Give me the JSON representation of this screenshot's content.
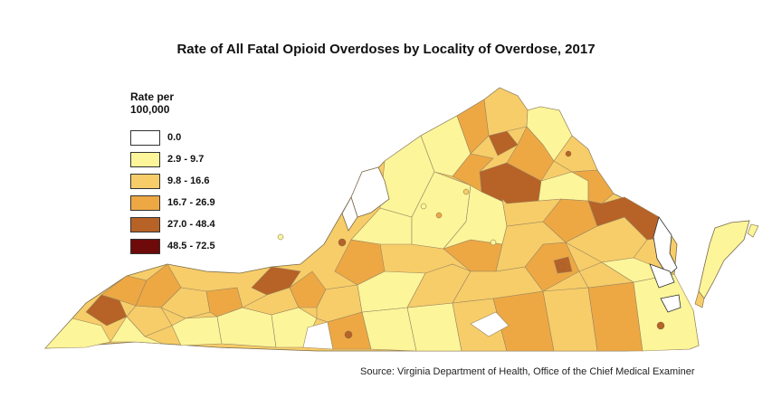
{
  "title": "Rate of All Fatal Opioid Overdoses by Locality of Overdose, 2017",
  "legend": {
    "title_line1": "Rate per",
    "title_line2": "100,000",
    "items": [
      {
        "label": "0.0",
        "color": "#ffffff"
      },
      {
        "label": "2.9 - 9.7",
        "color": "#fcf59a"
      },
      {
        "label": "9.8 - 16.6",
        "color": "#f7cd69"
      },
      {
        "label": "16.7 - 26.9",
        "color": "#eda844"
      },
      {
        "label": "27.0 - 48.4",
        "color": "#b76226"
      },
      {
        "label": "48.5 - 72.5",
        "color": "#6e0a0a"
      }
    ]
  },
  "source": "Source: Virginia Department of Health, Office of the Chief Medical Examiner"
}
